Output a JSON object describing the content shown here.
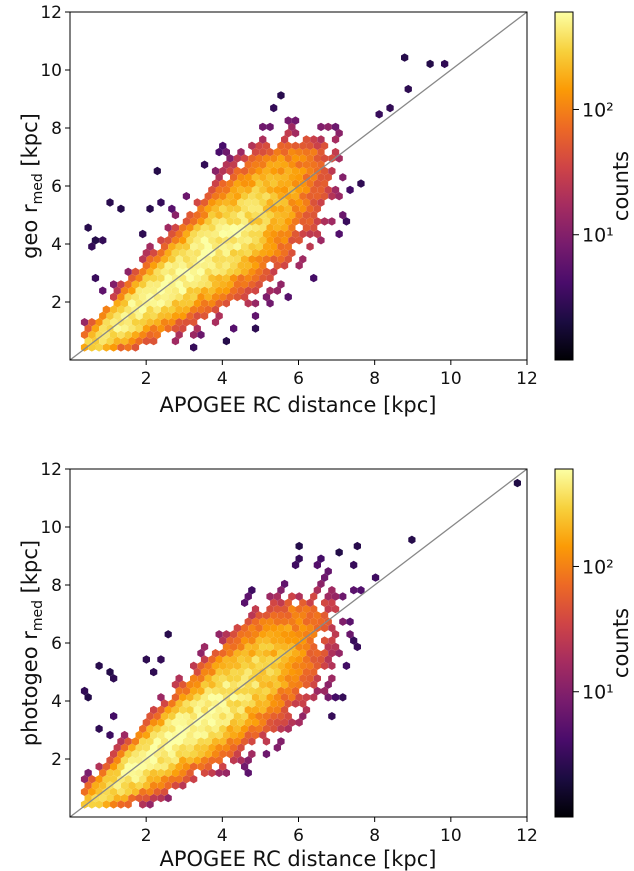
{
  "chart_data": [
    {
      "type": "hexbin",
      "xlabel": "APOGEE RC distance [kpc]",
      "ylabel": {
        "base": "geo r",
        "sub": "med",
        "unit": " [kpc]"
      },
      "xlim": [
        0,
        12
      ],
      "ylim": [
        0,
        12
      ],
      "xticks": [
        "2",
        "4",
        "6",
        "8",
        "10",
        "12"
      ],
      "yticks": [
        "2",
        "4",
        "6",
        "8",
        "10",
        "12"
      ],
      "identity_line": {
        "from": [
          0,
          0
        ],
        "to": [
          12,
          12
        ],
        "color": "#888888"
      },
      "colorbar": {
        "label": "counts",
        "scale": "log",
        "range": [
          1,
          600
        ],
        "ticks": [
          "10¹",
          "10²"
        ]
      },
      "density": {
        "center_slope": 1.0,
        "spread": 0.19,
        "peak_x": 2.1,
        "sparse_outliers_upper": true
      },
      "grid": false
    },
    {
      "type": "hexbin",
      "xlabel": "APOGEE RC distance [kpc]",
      "ylabel": {
        "base": "photogeo r",
        "sub": "med",
        "unit": " [kpc]"
      },
      "xlim": [
        0,
        12
      ],
      "ylim": [
        0,
        12
      ],
      "xticks": [
        "2",
        "4",
        "6",
        "8",
        "10",
        "12"
      ],
      "yticks": [
        "2",
        "4",
        "6",
        "8",
        "10",
        "12"
      ],
      "identity_line": {
        "from": [
          0,
          0
        ],
        "to": [
          12,
          12
        ],
        "color": "#888888"
      },
      "colorbar": {
        "label": "counts",
        "scale": "log",
        "range": [
          1,
          600
        ],
        "ticks": [
          "10¹",
          "10²"
        ]
      },
      "density": {
        "center_slope": 0.98,
        "spread": 0.17,
        "peak_x": 2.1,
        "sparse_outliers_upper": true
      },
      "grid": false
    }
  ],
  "colormap": [
    "#000004",
    "#1b0c41",
    "#4a0c6b",
    "#781c6d",
    "#a52c60",
    "#cf4446",
    "#ed6925",
    "#fb9b06",
    "#f7d13d",
    "#fcffa4"
  ]
}
